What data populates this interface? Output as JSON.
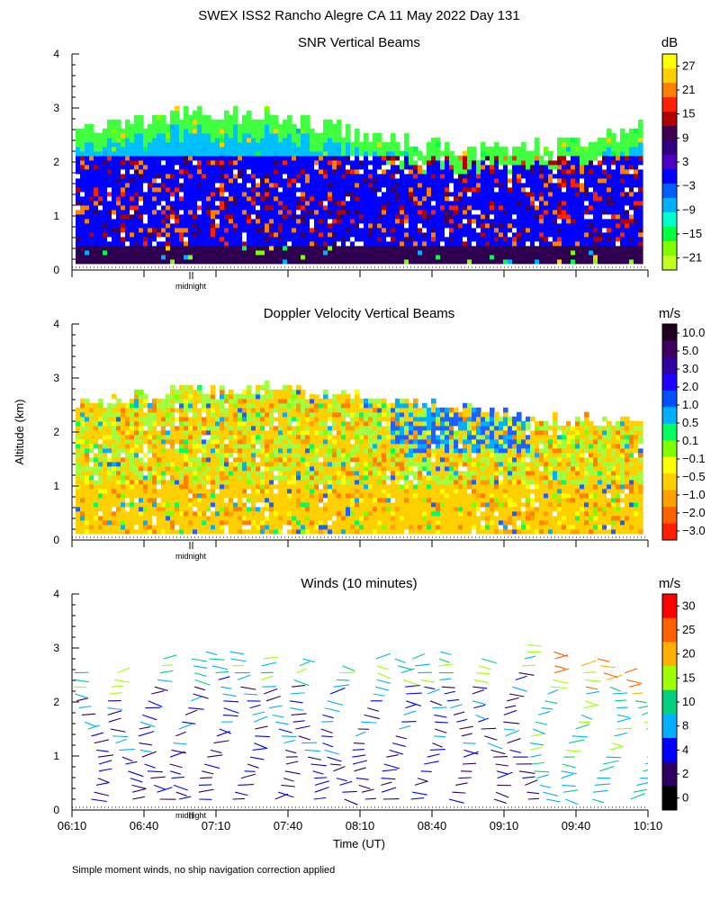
{
  "figure": {
    "title": "SWEX ISS2 Rancho Alegre CA  11 May 2022 Day 131",
    "ylabel": "Altitude (km)",
    "xlabel": "Time (UT)",
    "midnight_label": "midnight",
    "footnote": "Simple moment winds, no ship navigation correction applied"
  },
  "chart_data": [
    {
      "type": "heatmap",
      "title": "SNR Vertical Beams",
      "unit": "dB",
      "ylim": [
        0,
        4
      ],
      "yticks": [
        "0",
        "1",
        "2",
        "3",
        "4"
      ],
      "colorbar": {
        "labels": [
          "27",
          "21",
          "15",
          "9",
          "3",
          "−3",
          "−9",
          "−15",
          "−21"
        ],
        "colors": [
          "#ffff00",
          "#ffd000",
          "#ff8000",
          "#ff2000",
          "#b00000",
          "#400050",
          "#300080",
          "#5000c0",
          "#0000ff",
          "#0060ff",
          "#00b0ff",
          "#00ffd0",
          "#00ff40",
          "#80ff00",
          "#c0ff20"
        ]
      },
      "layers": [
        {
          "name": "low",
          "color": "#300050",
          "from": 0.1,
          "to": 0.5
        },
        {
          "name": "mid",
          "color": "#0000ff",
          "from": 0.4,
          "to": 2.2
        },
        {
          "name": "upper",
          "color": "#00c0ff",
          "from": 2.0,
          "to": 2.5
        },
        {
          "name": "top",
          "color": "#40ff40",
          "from": 2.4,
          "to": 3.0
        }
      ],
      "hot_colors": [
        "#ff2000",
        "#b00000",
        "#ff8000",
        "#400050"
      ],
      "cool_colors": [
        "#80ff00",
        "#00ff40",
        "#00b0ff",
        "#ffd000"
      ]
    },
    {
      "type": "heatmap",
      "title": "Doppler Velocity Vertical Beams",
      "unit": "m/s",
      "ylim": [
        0,
        4
      ],
      "yticks": [
        "0",
        "1",
        "2",
        "3",
        "4"
      ],
      "colorbar": {
        "labels": [
          "10.0",
          "5.0",
          "3.0",
          "2.0",
          "1.0",
          "0.5",
          "0.1",
          "−0.1",
          "−0.5",
          "−1.0",
          "−2.0",
          "−3.0"
        ],
        "colors": [
          "#200020",
          "#400060",
          "#3000a0",
          "#2000ff",
          "#0050ff",
          "#00b0ff",
          "#00ff60",
          "#80ff00",
          "#ffff00",
          "#ffd000",
          "#ffa000",
          "#ff6000",
          "#ff2000"
        ]
      },
      "layers": [
        {
          "name": "base",
          "color": "#ffd000",
          "from": 0.1,
          "to": 2.4
        },
        {
          "name": "mix",
          "color": "#a0ff40",
          "from": 1.0,
          "to": 2.5
        }
      ],
      "hot_colors": [
        "#ff8000",
        "#ffa000",
        "#ffff00",
        "#ffd000"
      ],
      "cool_colors": [
        "#00ff60",
        "#80ff00",
        "#00b0ff",
        "#2060ff"
      ]
    },
    {
      "type": "barbs",
      "title": "Winds (10 minutes)",
      "unit": "m/s",
      "ylim": [
        0,
        4
      ],
      "yticks": [
        "0",
        "1",
        "2",
        "3",
        "4"
      ],
      "xlim_minutes": [
        370,
        610
      ],
      "x_ticks": [
        "06:10",
        "06:40",
        "07:10",
        "07:40",
        "08:10",
        "08:40",
        "09:10",
        "09:40",
        "10:10"
      ],
      "colorbar": {
        "labels": [
          "30",
          "25",
          "20",
          "15",
          "10",
          "8",
          "4",
          "2",
          "0"
        ],
        "colors": [
          "#ff0000",
          "#ff6000",
          "#ffb000",
          "#a0ff00",
          "#00d080",
          "#00b0ff",
          "#0000ff",
          "#300060",
          "#000000"
        ]
      },
      "profiles_minutes": [
        376,
        390,
        403,
        416,
        428,
        441,
        454,
        466,
        479,
        492,
        504,
        516,
        528,
        542,
        555,
        566,
        579,
        592,
        605
      ],
      "top_km": [
        2.6,
        2.6,
        2.9,
        2.8,
        3.0,
        3.0,
        2.9,
        2.9,
        2.7,
        2.8,
        2.8,
        2.9,
        3.0,
        2.8,
        3.1,
        3.0,
        2.7,
        2.8,
        2.6
      ]
    }
  ]
}
